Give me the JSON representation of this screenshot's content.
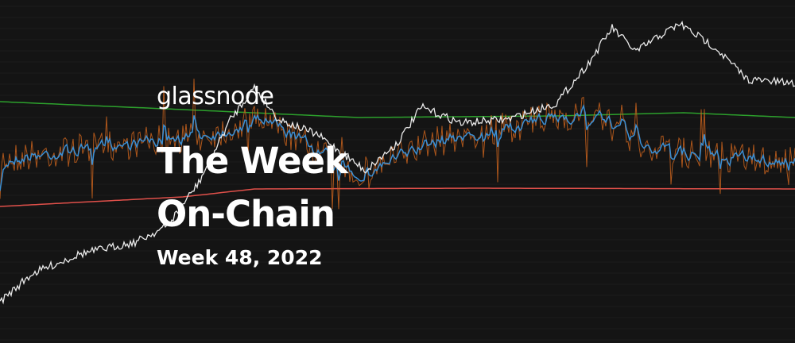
{
  "brand": "glassnode",
  "title": {
    "line1": "The Week",
    "line2": "On-Chain"
  },
  "subtitle": "Week 48, 2022"
}
